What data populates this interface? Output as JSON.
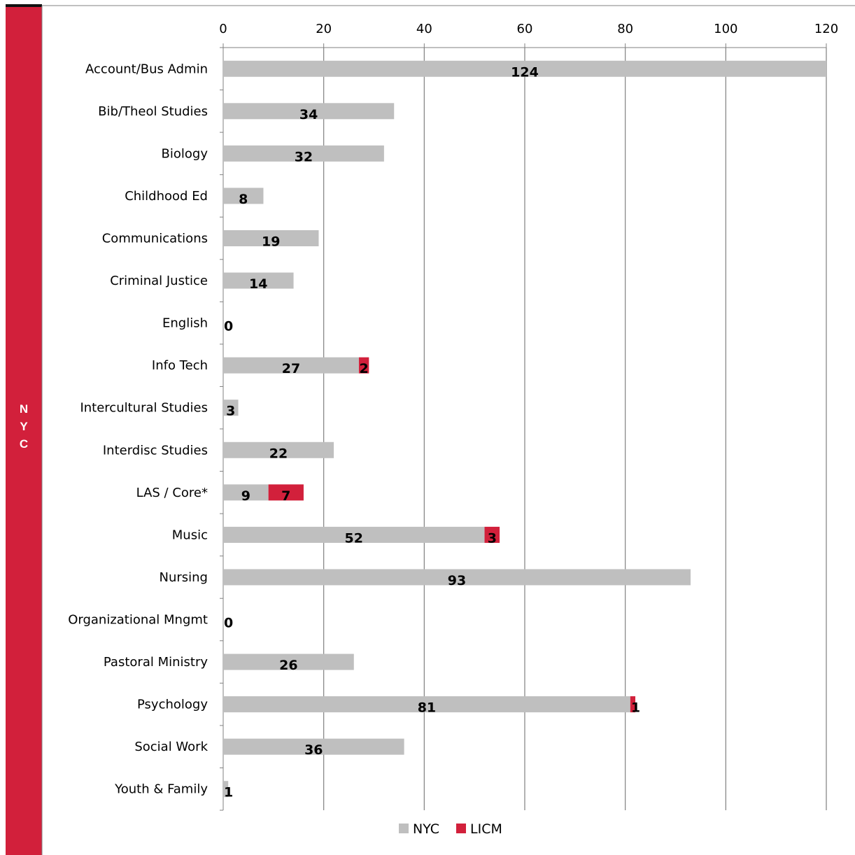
{
  "side_label": "NYC",
  "chart_data": {
    "type": "bar",
    "orientation": "horizontal",
    "stacked": true,
    "categories": [
      "Account/Bus Admin",
      "Bib/Theol Studies",
      "Biology",
      "Childhood Ed",
      "Communications",
      "Criminal Justice",
      "English",
      "Info Tech",
      "Intercultural Studies",
      "Interdisc Studies",
      "LAS / Core*",
      "Music",
      "Nursing",
      "Organizational Mngmt",
      "Pastoral Ministry",
      "Psychology",
      "Social Work",
      "Youth & Family"
    ],
    "series": [
      {
        "name": "NYC",
        "color": "#bfbfbf",
        "values": [
          124,
          34,
          32,
          8,
          19,
          14,
          0,
          27,
          3,
          22,
          9,
          52,
          93,
          0,
          26,
          81,
          36,
          1
        ]
      },
      {
        "name": "LICM",
        "color": "#d2203b",
        "values": [
          0,
          0,
          0,
          0,
          0,
          0,
          0,
          2,
          0,
          0,
          7,
          3,
          0,
          0,
          0,
          1,
          0,
          0
        ]
      }
    ],
    "xlim": [
      0,
      120
    ],
    "xticks": [
      0,
      20,
      40,
      60,
      80,
      100,
      120
    ],
    "grid": true,
    "x_axis_position": "top",
    "legend_position": "bottom"
  }
}
